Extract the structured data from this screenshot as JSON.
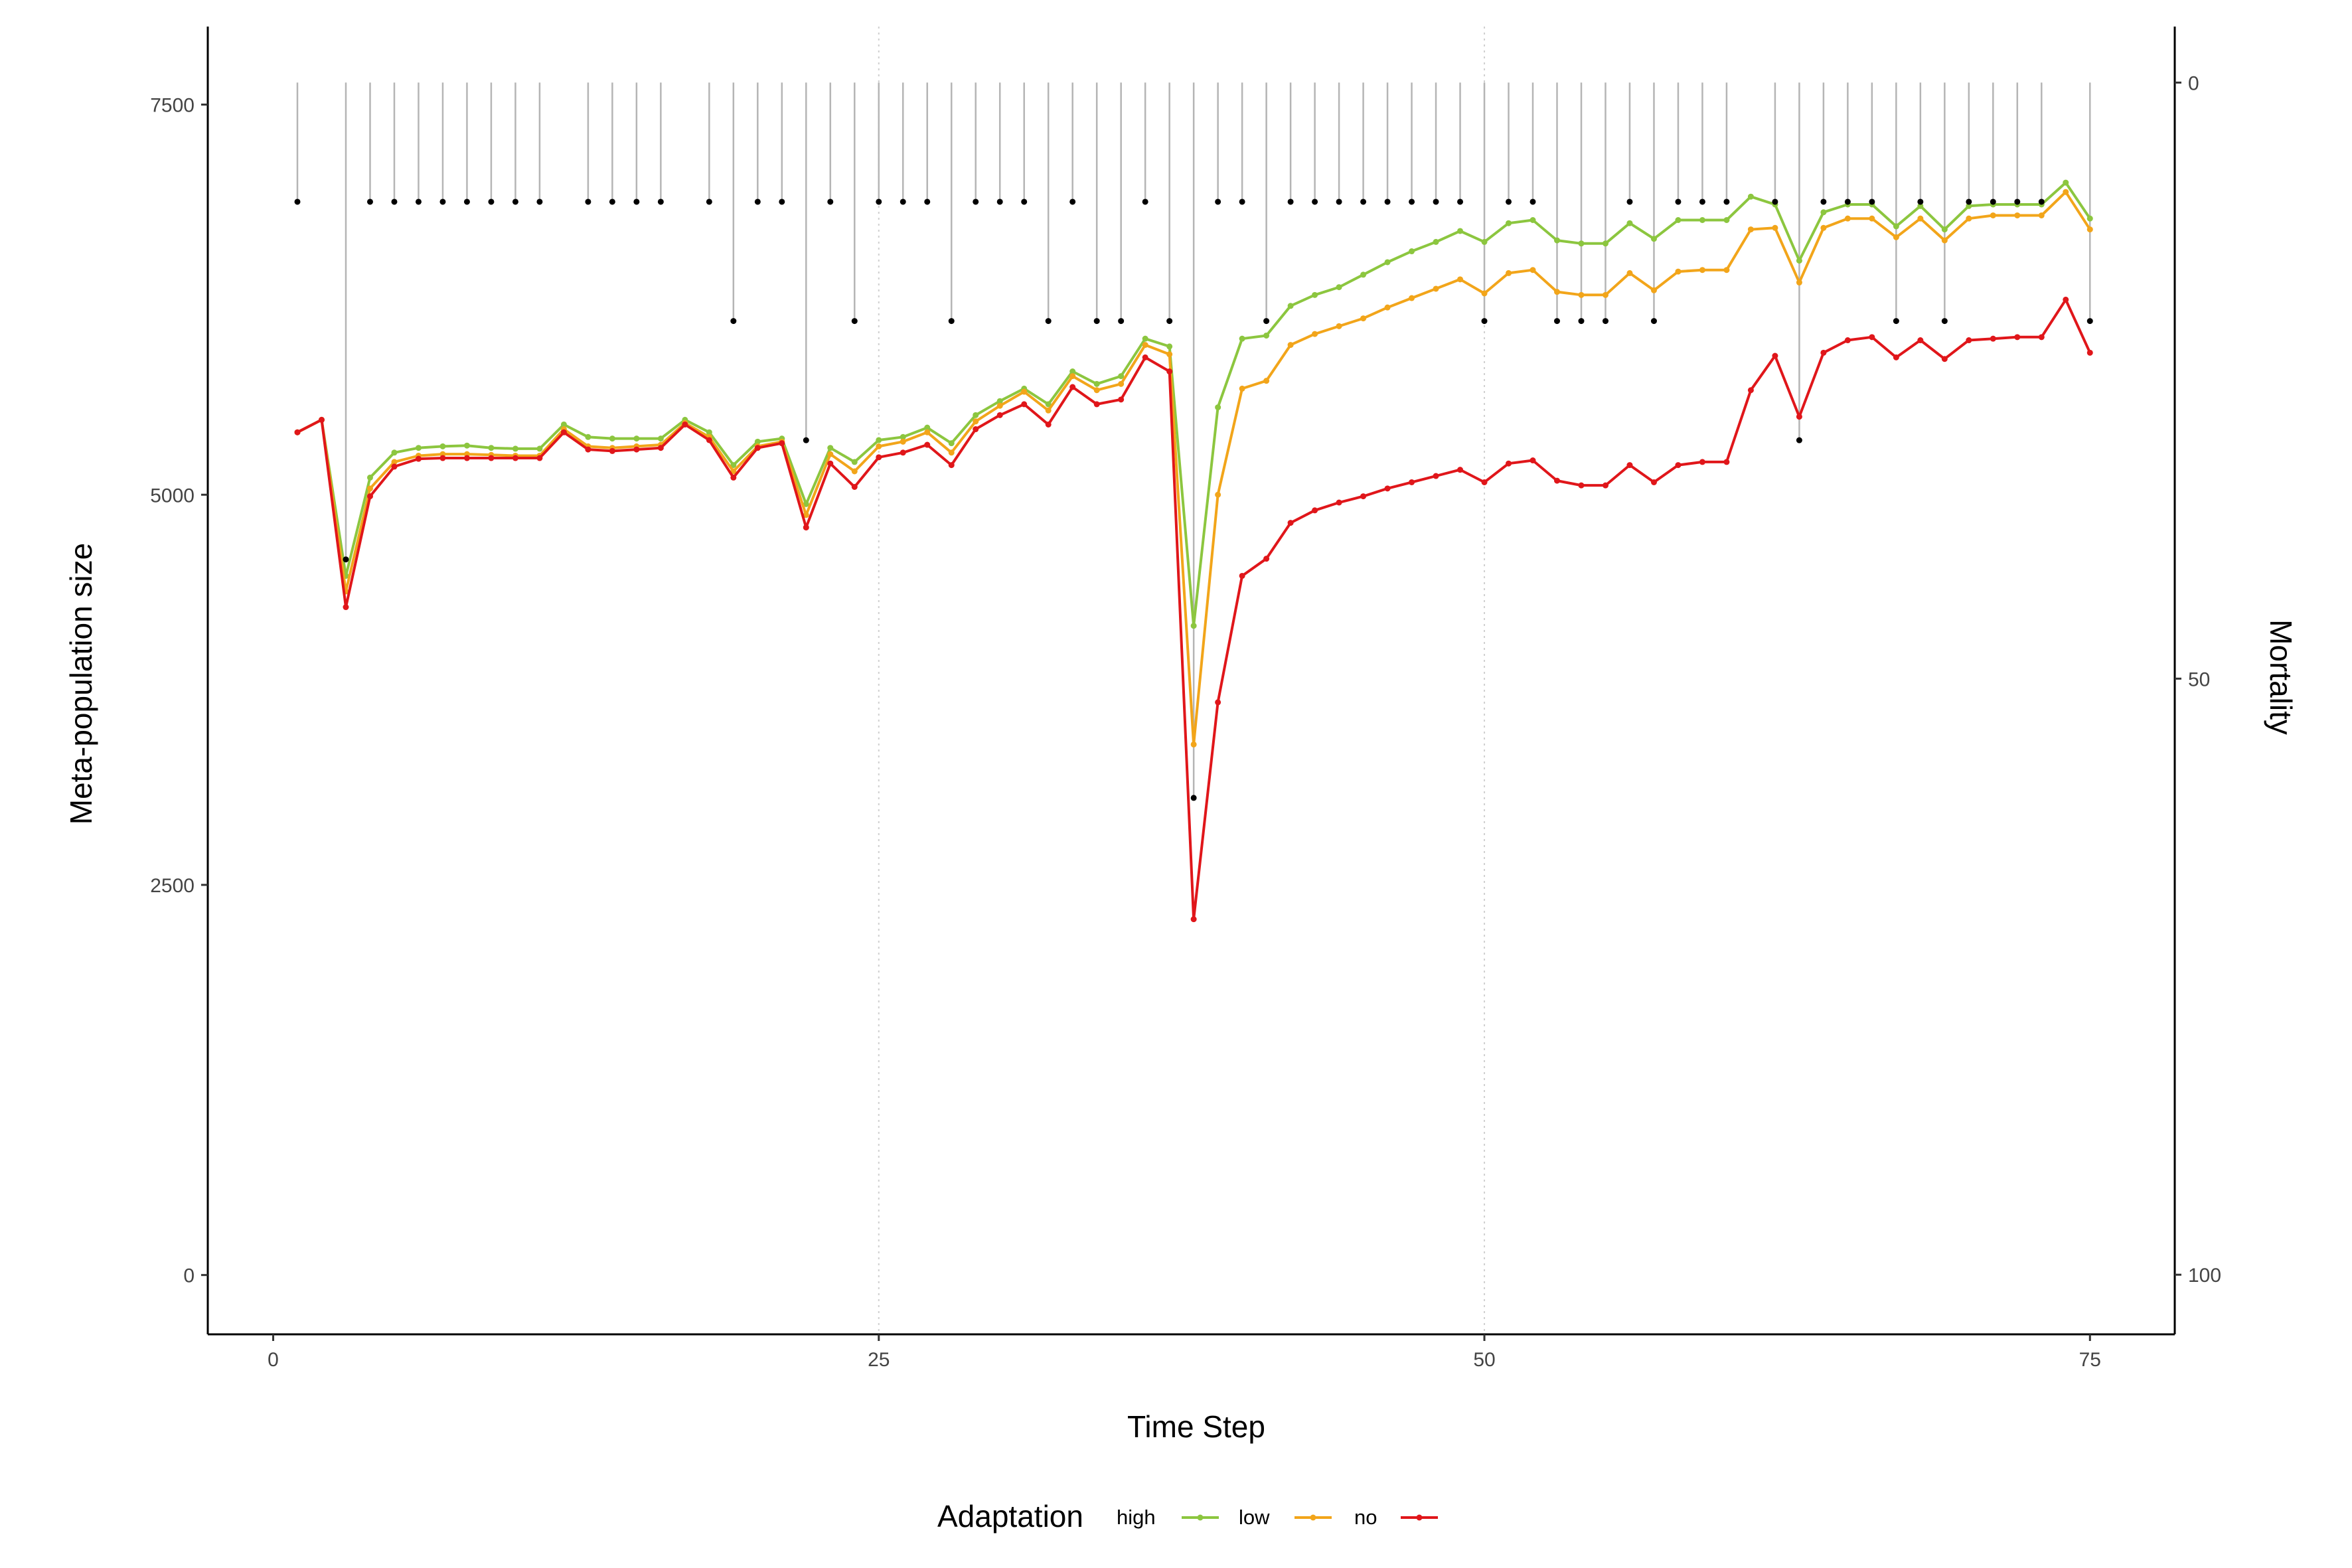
{
  "chart_data": {
    "type": "line",
    "title": "",
    "xlabel": "Time Step",
    "ylabel": "Meta-population size",
    "y2label": "Mortality",
    "xlim": [
      -2.7,
      78.5
    ],
    "ylim": [
      -380,
      8000
    ],
    "y2lim": [
      105,
      -4.7
    ],
    "x_ticks": [
      0,
      25,
      50,
      75
    ],
    "y_ticks": [
      0,
      2500,
      5000,
      7500
    ],
    "y2_ticks": [
      0,
      50,
      100
    ],
    "x_tick_labels": [
      "0",
      "25",
      "50",
      "75"
    ],
    "y_tick_labels": [
      "0",
      "2500",
      "5000",
      "7500"
    ],
    "y2_tick_labels": [
      "0",
      "50",
      "100"
    ],
    "grid": "vertical dotted at x ticks",
    "legend_position": "bottom",
    "legend_title": "Adaptation",
    "x": [
      1,
      2,
      3,
      4,
      5,
      6,
      7,
      8,
      9,
      10,
      11,
      12,
      13,
      14,
      15,
      16,
      17,
      18,
      19,
      20,
      21,
      22,
      23,
      24,
      25,
      26,
      27,
      28,
      29,
      30,
      31,
      32,
      33,
      34,
      35,
      36,
      37,
      38,
      39,
      40,
      41,
      42,
      43,
      44,
      45,
      46,
      47,
      48,
      49,
      50,
      51,
      52,
      53,
      54,
      55,
      56,
      57,
      58,
      59,
      60,
      61,
      62,
      63,
      64,
      65,
      66,
      67,
      68,
      69,
      70,
      71,
      72,
      73,
      74,
      75
    ],
    "series": [
      {
        "name": "high",
        "color": "#8CC63F",
        "values": [
          5400,
          5480,
          4480,
          5110,
          5270,
          5300,
          5310,
          5315,
          5300,
          5295,
          5295,
          5450,
          5370,
          5360,
          5360,
          5360,
          5480,
          5400,
          5190,
          5340,
          5360,
          4940,
          5300,
          5210,
          5350,
          5370,
          5430,
          5330,
          5510,
          5600,
          5680,
          5580,
          5790,
          5710,
          5760,
          6000,
          5950,
          4160,
          5560,
          6000,
          6020,
          6210,
          6280,
          6330,
          6410,
          6490,
          6560,
          6620,
          6690,
          6620,
          6740,
          6760,
          6630,
          6610,
          6610,
          6740,
          6640,
          6760,
          6760,
          6760,
          6910,
          6860,
          6500,
          6810,
          6860,
          6860,
          6720,
          6850,
          6700,
          6850,
          6860,
          6860,
          6860,
          7000,
          6770
        ]
      },
      {
        "name": "low",
        "color": "#F2A51A",
        "values": [
          5400,
          5480,
          4380,
          5040,
          5210,
          5250,
          5260,
          5260,
          5255,
          5250,
          5250,
          5420,
          5310,
          5300,
          5310,
          5320,
          5460,
          5370,
          5150,
          5310,
          5340,
          4870,
          5260,
          5150,
          5310,
          5340,
          5400,
          5270,
          5470,
          5570,
          5660,
          5540,
          5760,
          5670,
          5710,
          5960,
          5900,
          3400,
          5000,
          5680,
          5730,
          5960,
          6030,
          6080,
          6130,
          6200,
          6260,
          6320,
          6380,
          6290,
          6420,
          6440,
          6300,
          6280,
          6280,
          6420,
          6310,
          6430,
          6440,
          6440,
          6700,
          6710,
          6360,
          6710,
          6770,
          6770,
          6650,
          6770,
          6630,
          6770,
          6790,
          6790,
          6790,
          6940,
          6700
        ]
      },
      {
        "name": "no",
        "color": "#E0161A",
        "values": [
          5400,
          5480,
          4280,
          4990,
          5180,
          5230,
          5235,
          5235,
          5235,
          5235,
          5235,
          5400,
          5290,
          5280,
          5290,
          5300,
          5450,
          5350,
          5110,
          5300,
          5330,
          4790,
          5200,
          5050,
          5240,
          5270,
          5320,
          5190,
          5420,
          5510,
          5580,
          5450,
          5690,
          5580,
          5610,
          5880,
          5790,
          2280,
          3670,
          4480,
          4590,
          4820,
          4900,
          4950,
          4990,
          5040,
          5080,
          5120,
          5160,
          5080,
          5200,
          5220,
          5090,
          5060,
          5060,
          5190,
          5080,
          5190,
          5210,
          5210,
          5670,
          5890,
          5500,
          5910,
          5990,
          6010,
          5880,
          5990,
          5870,
          5990,
          6000,
          6010,
          6010,
          6250,
          5910
        ]
      }
    ],
    "mortality_series": {
      "x": [
        1,
        3,
        4,
        5,
        6,
        7,
        8,
        9,
        10,
        11,
        13,
        14,
        15,
        16,
        18,
        19,
        20,
        21,
        22,
        23,
        24,
        25,
        26,
        27,
        28,
        29,
        30,
        31,
        32,
        33,
        34,
        35,
        36,
        37,
        38,
        39,
        40,
        41,
        42,
        43,
        44,
        45,
        46,
        47,
        48,
        49,
        50,
        51,
        52,
        53,
        54,
        55,
        56,
        57,
        58,
        59,
        60,
        62,
        63,
        64,
        65,
        66,
        67,
        68,
        69,
        70,
        71,
        72,
        73,
        75
      ],
      "values": [
        10,
        40,
        10,
        10,
        10,
        10,
        10,
        10,
        10,
        10,
        10,
        10,
        10,
        10,
        10,
        20,
        10,
        10,
        30,
        10,
        20,
        10,
        10,
        10,
        20,
        10,
        10,
        10,
        20,
        10,
        20,
        20,
        10,
        20,
        60,
        10,
        10,
        20,
        10,
        10,
        10,
        10,
        10,
        10,
        10,
        10,
        20,
        10,
        10,
        20,
        20,
        20,
        10,
        20,
        10,
        10,
        10,
        10,
        30,
        10,
        10,
        10,
        20,
        10,
        20,
        10,
        10,
        10,
        10,
        20
      ]
    }
  }
}
